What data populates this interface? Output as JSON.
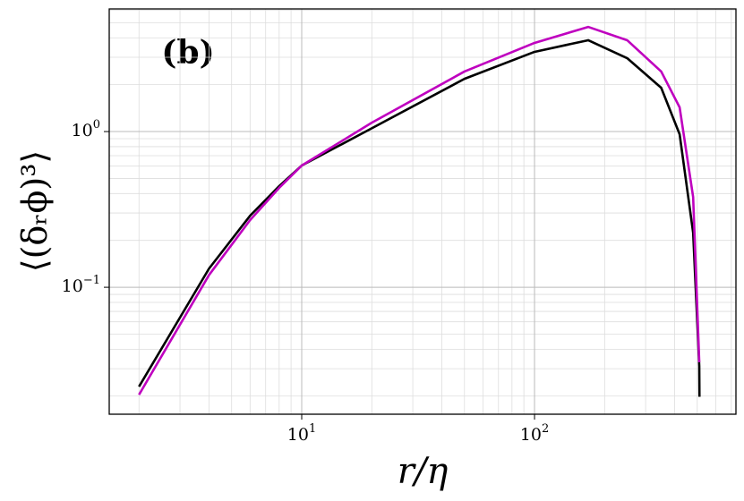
{
  "chart_data": {
    "type": "line",
    "annotation": "(b)",
    "x_label": "r/η",
    "y_label": "⟨(δᵣϕ)³⟩",
    "log_x": true,
    "log_y": true,
    "grid": "both",
    "xlim": [
      1.49,
      733
    ],
    "ylim": [
      0.0153,
      6.13
    ],
    "xticks": [
      {
        "value": 10,
        "label": "10",
        "exponent": "1"
      },
      {
        "value": 100,
        "label": "10",
        "exponent": "2"
      }
    ],
    "yticks": [
      {
        "value": 0.1,
        "label": "10",
        "exponent": "−1"
      },
      {
        "value": 1,
        "label": "10",
        "exponent": "0"
      }
    ],
    "series": [
      {
        "color": "#000000",
        "x": [
          2,
          4,
          6,
          8,
          10,
          20,
          50,
          100,
          170,
          250,
          350,
          420,
          480,
          510,
          511
        ],
        "values": [
          0.023,
          0.132,
          0.288,
          0.446,
          0.605,
          1.05,
          2.18,
          3.25,
          3.86,
          2.96,
          1.91,
          0.96,
          0.224,
          0.0312,
          0.0198
        ]
      },
      {
        "color": "#bf00bf",
        "x": [
          2,
          4,
          6,
          8,
          10,
          20,
          50,
          100,
          170,
          250,
          350,
          420,
          480,
          510
        ],
        "values": [
          0.0204,
          0.12,
          0.27,
          0.435,
          0.605,
          1.14,
          2.43,
          3.71,
          4.7,
          3.86,
          2.43,
          1.43,
          0.38,
          0.033
        ]
      }
    ]
  }
}
